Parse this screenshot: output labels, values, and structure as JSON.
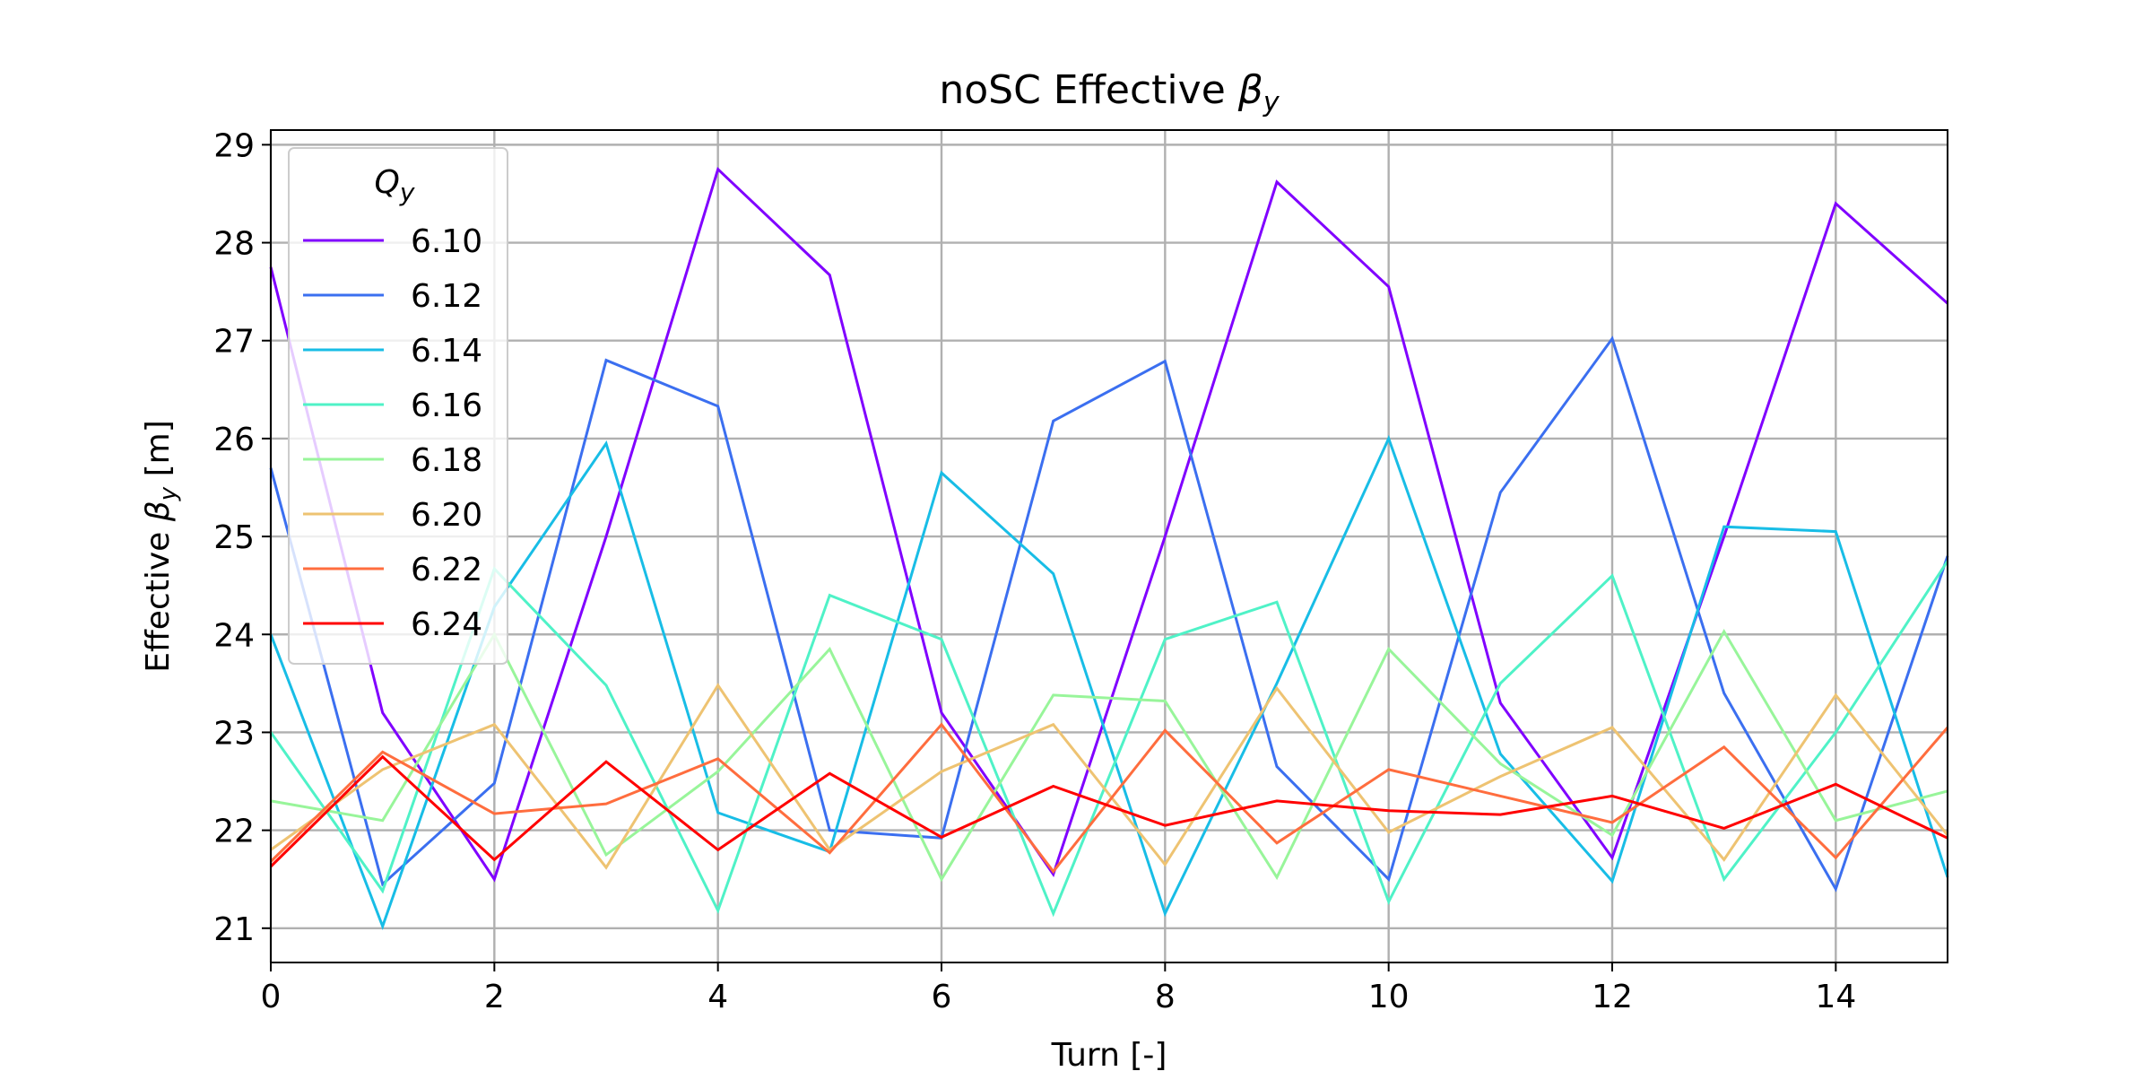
{
  "chart_data": {
    "type": "line",
    "title": "noSC Effective β_y",
    "title_parts": {
      "prefix": "noSC Effective ",
      "symbol": "β",
      "sub": "y"
    },
    "xlabel": "Turn [-]",
    "ylabel_parts": {
      "prefix": "Effective ",
      "symbol": "β",
      "sub": "y",
      "suffix": " [m]"
    },
    "xlim": [
      0,
      15
    ],
    "ylim": [
      20.65,
      29.15
    ],
    "xticks": [
      0,
      2,
      4,
      6,
      8,
      10,
      12,
      14
    ],
    "yticks": [
      21,
      22,
      23,
      24,
      25,
      26,
      27,
      28,
      29
    ],
    "grid": true,
    "legend": {
      "title_symbol": "Q",
      "title_sub": "y",
      "placement": "top-left"
    },
    "x": [
      0,
      1,
      2,
      3,
      4,
      5,
      6,
      7,
      8,
      9,
      10,
      11,
      12,
      13,
      14,
      15
    ],
    "series": [
      {
        "name": "6.10",
        "color": "#8000ff",
        "values": [
          27.75,
          23.2,
          21.5,
          25.0,
          28.75,
          27.67,
          23.2,
          21.55,
          25.0,
          28.62,
          27.55,
          23.3,
          21.72,
          25.0,
          28.4,
          27.38
        ]
      },
      {
        "name": "6.12",
        "color": "#3b6ff0",
        "values": [
          25.7,
          21.45,
          22.48,
          26.8,
          26.33,
          22.0,
          21.92,
          26.18,
          26.79,
          22.65,
          21.5,
          25.45,
          27.02,
          23.4,
          21.4,
          24.8
        ]
      },
      {
        "name": "6.14",
        "color": "#18bde6",
        "values": [
          24.0,
          21.02,
          24.28,
          25.95,
          22.18,
          21.78,
          25.65,
          24.62,
          21.15,
          23.5,
          26.0,
          22.78,
          21.48,
          25.1,
          25.05,
          21.52
        ]
      },
      {
        "name": "6.16",
        "color": "#4ff2c7",
        "values": [
          23.0,
          21.38,
          24.67,
          23.48,
          21.18,
          24.4,
          23.95,
          21.15,
          23.95,
          24.33,
          21.27,
          23.5,
          24.6,
          21.5,
          23.0,
          24.75
        ]
      },
      {
        "name": "6.18",
        "color": "#98f59a",
        "values": [
          22.3,
          22.1,
          24.0,
          21.75,
          22.6,
          23.85,
          21.5,
          23.38,
          23.32,
          21.52,
          23.85,
          22.68,
          21.95,
          24.03,
          22.1,
          22.4
        ]
      },
      {
        "name": "6.20",
        "color": "#eec372",
        "values": [
          21.8,
          22.62,
          23.08,
          21.62,
          23.48,
          21.8,
          22.6,
          23.08,
          21.65,
          23.45,
          21.98,
          22.55,
          23.05,
          21.7,
          23.38,
          21.95
        ]
      },
      {
        "name": "6.22",
        "color": "#ff6d3e",
        "values": [
          21.68,
          22.8,
          22.17,
          22.27,
          22.73,
          21.77,
          23.08,
          21.58,
          23.02,
          21.87,
          22.62,
          22.35,
          22.08,
          22.85,
          21.72,
          23.05
        ]
      },
      {
        "name": "6.24",
        "color": "#ff0000",
        "values": [
          21.63,
          22.75,
          21.7,
          22.7,
          21.8,
          22.58,
          21.93,
          22.45,
          22.05,
          22.3,
          22.2,
          22.16,
          22.35,
          22.02,
          22.47,
          21.92
        ]
      }
    ]
  }
}
